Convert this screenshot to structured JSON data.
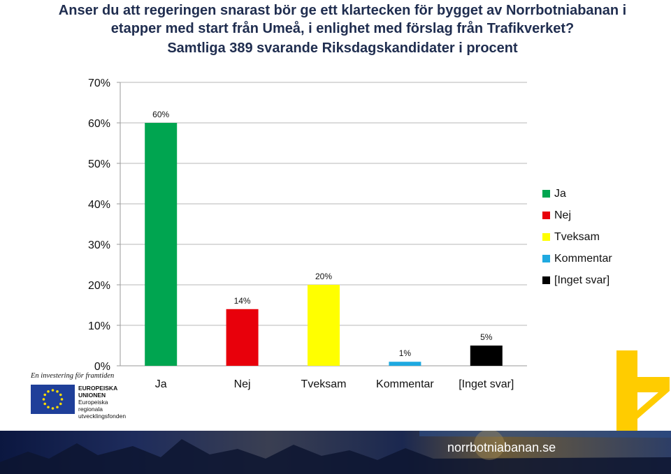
{
  "title_lines": [
    "Anser du att regeringen snarast bör ge ett klartecken för bygget av Norrbotniabanan i",
    "etapper med start från Umeå, i enlighet med förslag från Trafikverket?"
  ],
  "subtitle": "Samtliga 389 svarande Riksdagskandidater i procent",
  "chart_data": {
    "type": "bar",
    "categories": [
      "Ja",
      "Nej",
      "Tveksam",
      "Kommentar",
      "[Inget svar]"
    ],
    "values": [
      60,
      14,
      20,
      1,
      5
    ],
    "value_labels": [
      "60%",
      "14%",
      "20%",
      "1%",
      "5%"
    ],
    "colors": [
      "#00a550",
      "#e8000b",
      "#ffff00",
      "#1fa9e0",
      "#000000"
    ],
    "ylim": [
      0,
      70
    ],
    "yticks": [
      "0%",
      "10%",
      "20%",
      "30%",
      "40%",
      "50%",
      "60%",
      "70%"
    ],
    "grid": true,
    "legend": [
      "Ja",
      "Nej",
      "Tveksam",
      "Kommentar",
      "[Inget svar]"
    ],
    "legend_position": "right"
  },
  "eu": {
    "slogan": "En investering för framtiden",
    "line1": "EUROPEISKA",
    "line2": "UNIONEN",
    "line3": "Europeiska",
    "line4": "regionala",
    "line5": "utvecklingsfonden"
  },
  "footer": {
    "site": "norrbotniabanan.se"
  }
}
